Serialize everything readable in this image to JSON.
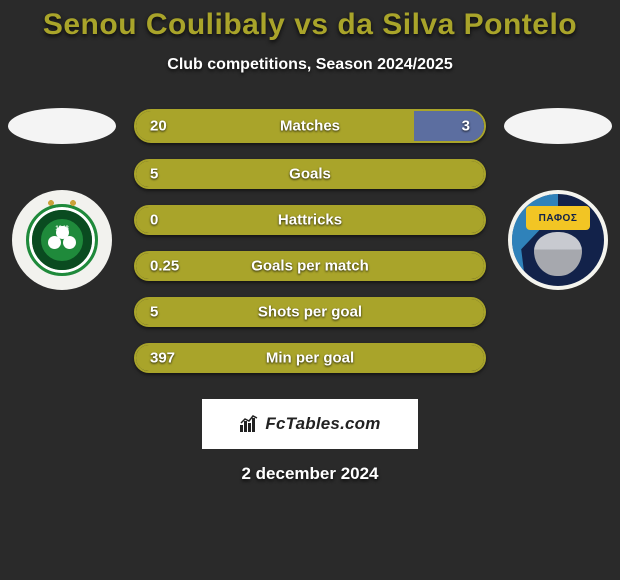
{
  "title_color": "#a9a42a",
  "title": "Senou Coulibaly vs da Silva Pontelo",
  "subtitle": "Club competitions, Season 2024/2025",
  "date": "2 december 2024",
  "watermark_text": "FcTables.com",
  "colors": {
    "left_fill": "#a9a42a",
    "right_fill": "#5c6ea0",
    "border": "#a9a42a",
    "background": "#2a2a2a",
    "text": "#ffffff"
  },
  "left_team": {
    "year": "1948",
    "ring_text_hint": "ΟΜΟΝΟΙΑ ΛΕΥΚΩΣΙΑΣ"
  },
  "right_team": {
    "banner_text": "ΠΑΦΟΣ"
  },
  "bars": [
    {
      "label": "Matches",
      "left_val": "20",
      "right_val": "3",
      "left_pct": 80,
      "right_pct": 20,
      "tall": true,
      "show_right": true
    },
    {
      "label": "Goals",
      "left_val": "5",
      "right_val": "",
      "left_pct": 100,
      "right_pct": 0,
      "tall": false,
      "show_right": false
    },
    {
      "label": "Hattricks",
      "left_val": "0",
      "right_val": "",
      "left_pct": 100,
      "right_pct": 0,
      "tall": false,
      "show_right": false
    },
    {
      "label": "Goals per match",
      "left_val": "0.25",
      "right_val": "",
      "left_pct": 100,
      "right_pct": 0,
      "tall": false,
      "show_right": false
    },
    {
      "label": "Shots per goal",
      "left_val": "5",
      "right_val": "",
      "left_pct": 100,
      "right_pct": 0,
      "tall": false,
      "show_right": false
    },
    {
      "label": "Min per goal",
      "left_val": "397",
      "right_val": "",
      "left_pct": 100,
      "right_pct": 0,
      "tall": false,
      "show_right": false
    }
  ]
}
